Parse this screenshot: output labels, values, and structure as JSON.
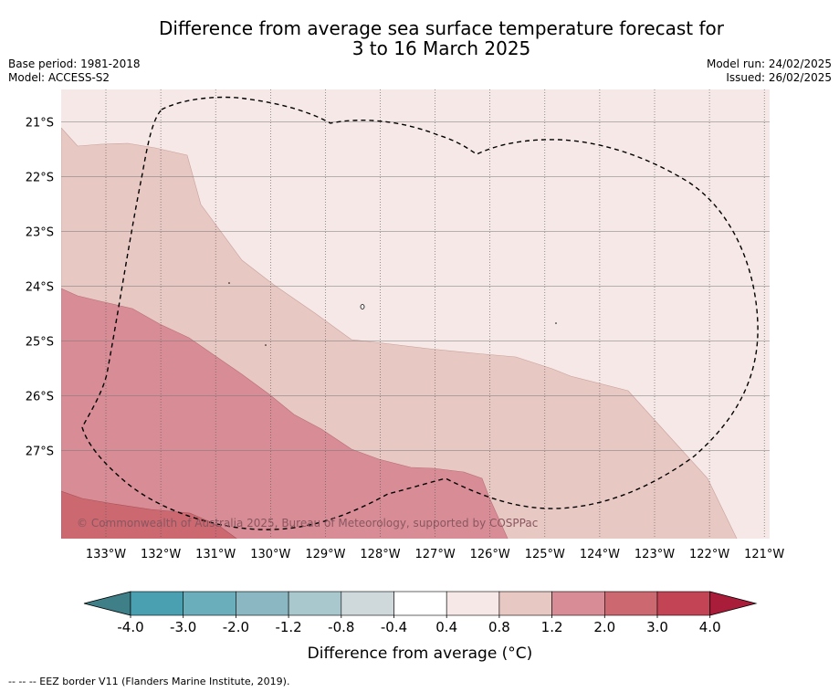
{
  "title": {
    "line1": "Difference from average sea surface temperature forecast for",
    "line2": "3 to 16 March 2025"
  },
  "meta_left": {
    "base_period": "Base period: 1981-2018",
    "model": "Model: ACCESS-S2"
  },
  "meta_right": {
    "model_run": "Model run: 24/02/2025",
    "issued": "Issued: 26/02/2025"
  },
  "map": {
    "lon_range": [
      -133.8,
      -120.9
    ],
    "lat_range": [
      -28.6,
      -20.4
    ],
    "lat_ticks": [
      "21°S",
      "22°S",
      "23°S",
      "24°S",
      "25°S",
      "26°S",
      "27°S"
    ],
    "lon_ticks": [
      "133°W",
      "132°W",
      "131°W",
      "130°W",
      "129°W",
      "128°W",
      "127°W",
      "126°W",
      "125°W",
      "124°W",
      "123°W",
      "122°W",
      "121°W"
    ],
    "grid": true,
    "copyright": "© Commonwealth of Australia 2025, Bureau of Meteorology, supported by COSPPac"
  },
  "colorbar": {
    "label": "Difference from average (°C)",
    "ticks": [
      "-4.0",
      "-3.0",
      "-2.0",
      "-1.2",
      "-0.8",
      "-0.4",
      "0.4",
      "0.8",
      "1.2",
      "2.0",
      "3.0",
      "4.0"
    ],
    "colors": [
      "#3f7f88",
      "#4aa0b1",
      "#6aadbb",
      "#8bb7c2",
      "#a9c8cd",
      "#cfd8db",
      "#ffffff",
      "#f5e8e6",
      "#e8c8c3",
      "#d88d96",
      "#cb6870",
      "#c24455",
      "#a91d3a"
    ]
  },
  "footer": "--  --  -- EEZ border V11 (Flanders Marine Institute, 2019)."
}
